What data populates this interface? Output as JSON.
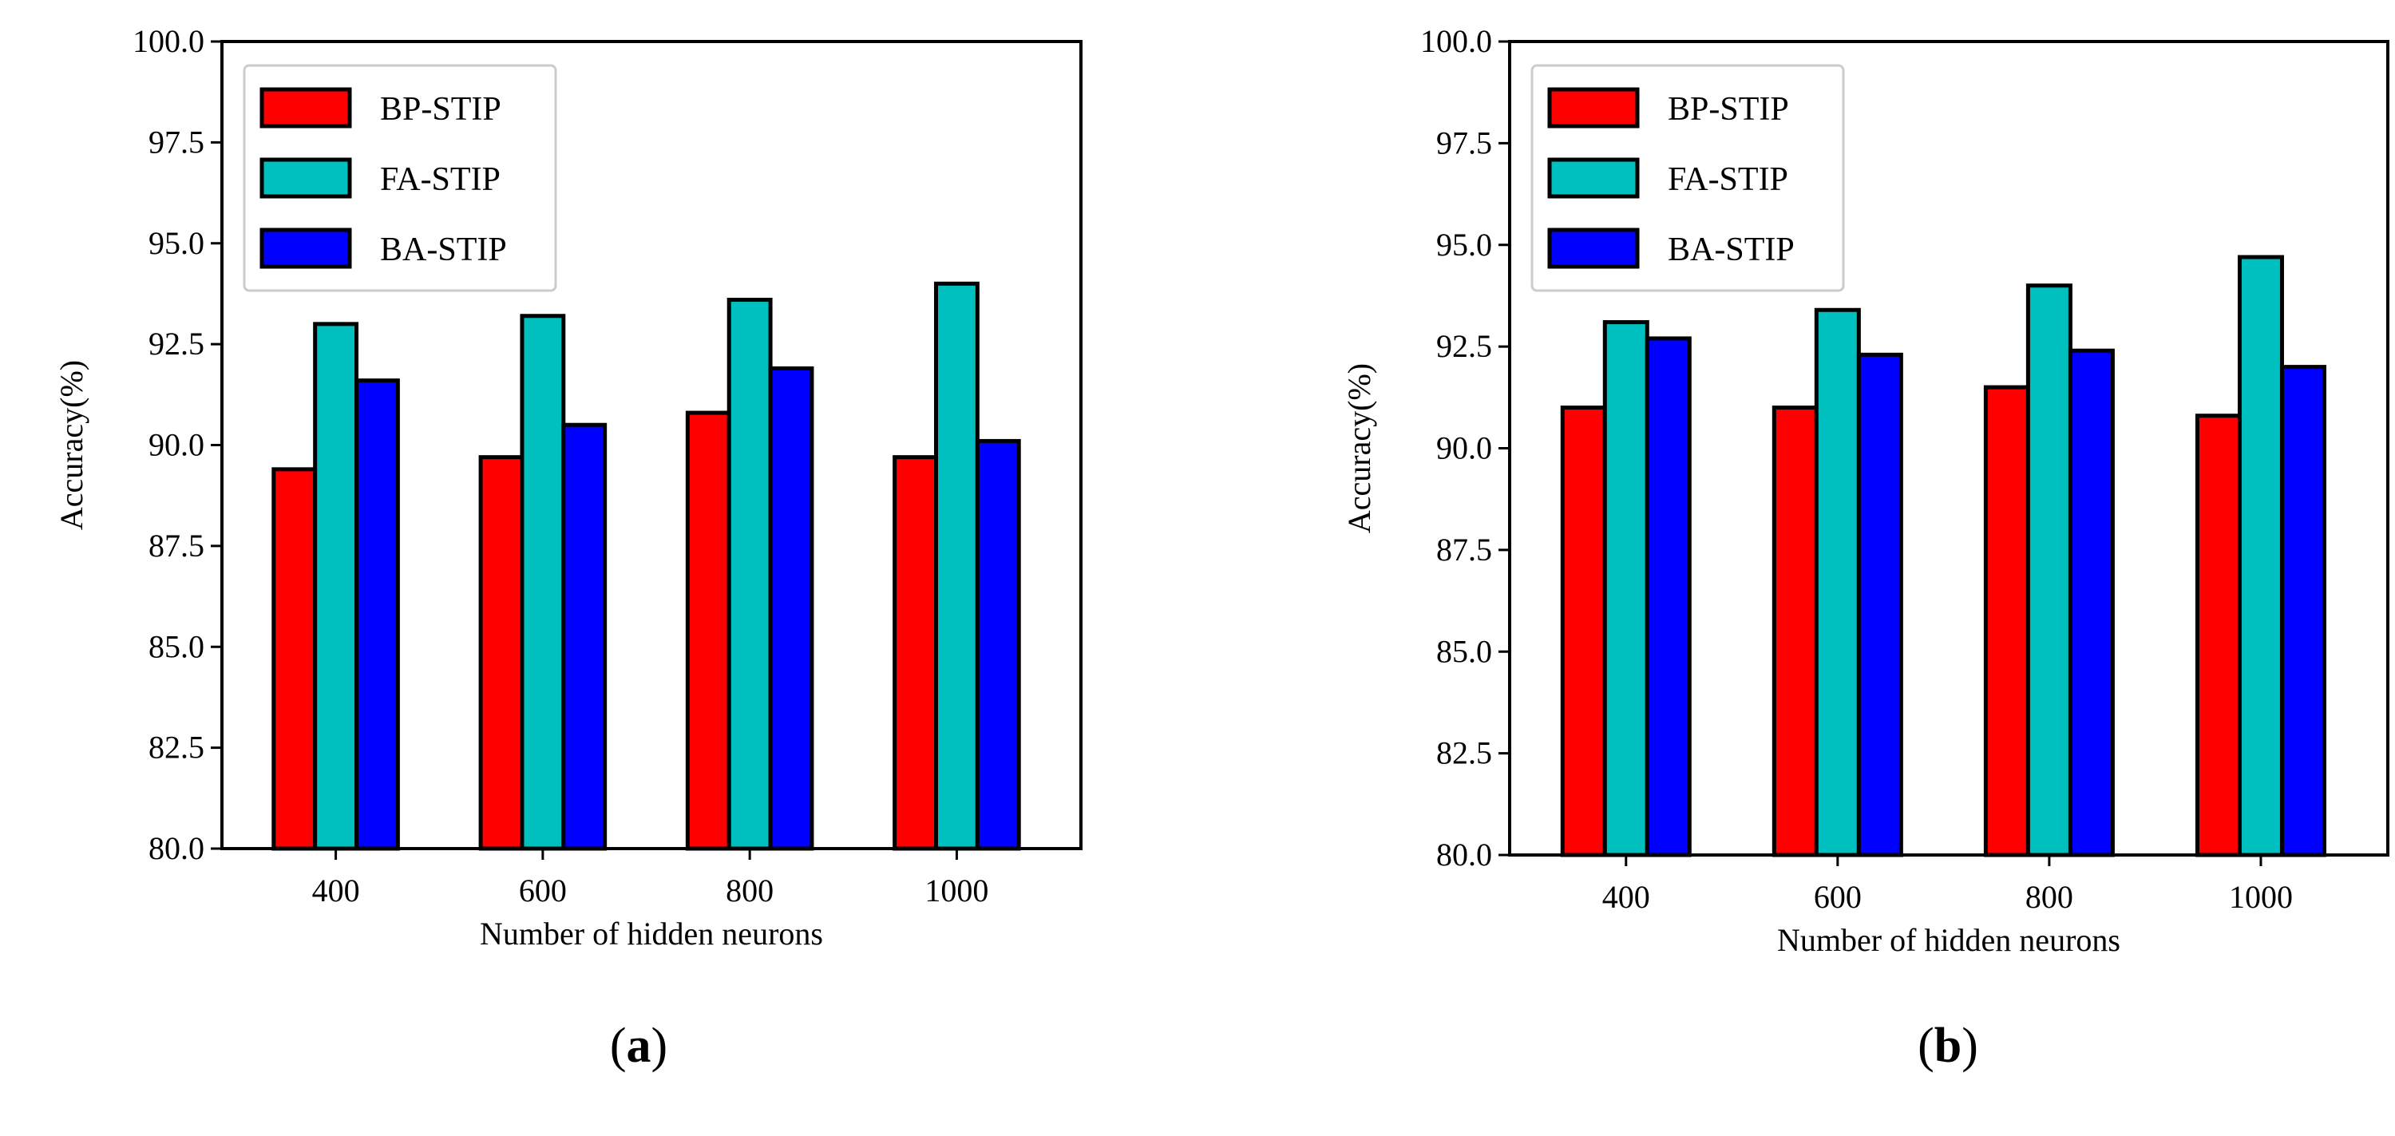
{
  "chart_data": [
    {
      "type": "bar",
      "caption": "a",
      "xlabel": "Number of hidden neurons",
      "ylabel": "Accuracy(%)",
      "ylim": [
        80,
        100
      ],
      "yticks": [
        "80.0",
        "82.5",
        "85.0",
        "87.5",
        "90.0",
        "92.5",
        "95.0",
        "97.5",
        "100.0"
      ],
      "categories": [
        "400",
        "600",
        "800",
        "1000"
      ],
      "legend_position": "top-left",
      "series": [
        {
          "name": "BP-STIP",
          "color": "#ff0000",
          "values": [
            89.4,
            89.7,
            90.8,
            89.7
          ]
        },
        {
          "name": "FA-STIP",
          "color": "#00bfbf",
          "values": [
            93.0,
            93.2,
            93.6,
            94.0
          ]
        },
        {
          "name": "BA-STIP",
          "color": "#0000ff",
          "values": [
            91.6,
            90.5,
            91.9,
            90.1
          ]
        }
      ]
    },
    {
      "type": "bar",
      "caption": "b",
      "xlabel": "Number of hidden neurons",
      "ylabel": "Accuracy(%)",
      "ylim": [
        80,
        100
      ],
      "yticks": [
        "80.0",
        "82.5",
        "85.0",
        "87.5",
        "90.0",
        "92.5",
        "95.0",
        "97.5",
        "100.0"
      ],
      "categories": [
        "400",
        "600",
        "800",
        "1000"
      ],
      "legend_position": "top-left",
      "series": [
        {
          "name": "BP-STIP",
          "color": "#ff0000",
          "values": [
            91.0,
            91.0,
            91.5,
            90.8
          ]
        },
        {
          "name": "FA-STIP",
          "color": "#00bfbf",
          "values": [
            93.1,
            93.4,
            94.0,
            94.7
          ]
        },
        {
          "name": "BA-STIP",
          "color": "#0000ff",
          "values": [
            92.7,
            92.3,
            92.4,
            92.0
          ]
        }
      ]
    }
  ]
}
